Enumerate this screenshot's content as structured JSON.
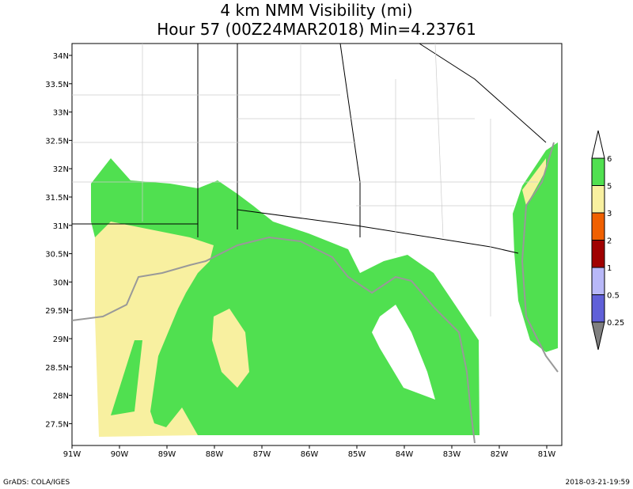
{
  "title": "4 km NMM Visibility (mi)",
  "subtitle": "Hour 57 (00Z24MAR2018) Min=4.23761",
  "map": {
    "lat_labels": [
      "34N",
      "33.5N",
      "33N",
      "32.5N",
      "32N",
      "31.5N",
      "31N",
      "30.5N",
      "30N",
      "29.5N",
      "29N",
      "28.5N",
      "28N",
      "27.5N"
    ],
    "lon_labels": [
      "91W",
      "90W",
      "89W",
      "88W",
      "87W",
      "86W",
      "85W",
      "84W",
      "83W",
      "82W",
      "81W"
    ]
  },
  "colorbar": {
    "colors": [
      "#808080",
      "#6060d8",
      "#b8b8f8",
      "#a00000",
      "#f06000",
      "#f8f0a0",
      "#50e050",
      "#ffffff"
    ],
    "labels": [
      "0.25",
      "0.5",
      "1",
      "2",
      "3",
      "5",
      "6"
    ]
  },
  "footer": {
    "left": "GrADS: COLA/IGES",
    "right": "2018-03-21-19:59"
  }
}
